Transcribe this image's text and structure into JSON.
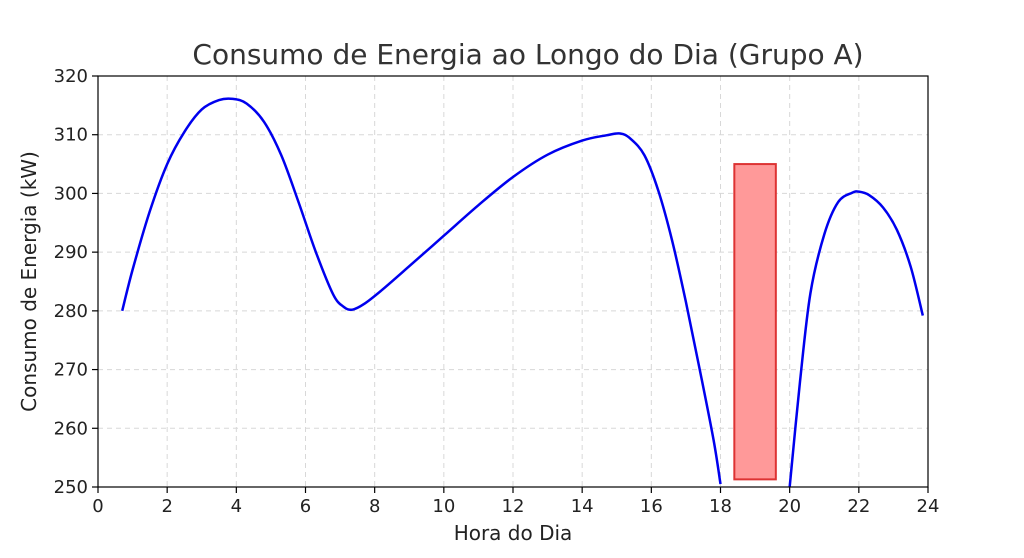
{
  "chart_data": {
    "type": "line",
    "title": "Consumo de Energia ao Longo do Dia (Grupo A)",
    "xlabel": "Hora do Dia",
    "ylabel": "Consumo de Energia (kW)",
    "xlim": [
      0,
      24
    ],
    "ylim": [
      250,
      320
    ],
    "xticks": [
      0,
      2,
      4,
      6,
      8,
      10,
      12,
      14,
      16,
      18,
      20,
      22,
      24
    ],
    "yticks": [
      250,
      260,
      270,
      280,
      290,
      300,
      310,
      320
    ],
    "grid": true,
    "series_color": "#0000ee",
    "series": [
      {
        "x": [
          0.7,
          1.0,
          1.5,
          2.0,
          2.5,
          3.0,
          3.5,
          3.9,
          4.3,
          4.8,
          5.3,
          5.8,
          6.3,
          6.8,
          7.1,
          7.35,
          7.7,
          8.2,
          9.0,
          10.0,
          11.0,
          12.0,
          13.0,
          14.0,
          14.7,
          15.1,
          15.4,
          15.8,
          16.2,
          16.6,
          17.0,
          17.4,
          17.8,
          18.0
        ],
        "y": [
          280.0,
          287.0,
          297.0,
          305.0,
          310.5,
          314.3,
          315.9,
          316.1,
          315.3,
          312.2,
          306.5,
          298.5,
          290.0,
          282.8,
          280.7,
          280.2,
          281.2,
          283.5,
          287.6,
          292.8,
          298.0,
          302.8,
          306.6,
          309.0,
          309.9,
          310.2,
          309.3,
          306.5,
          300.5,
          292.0,
          281.5,
          270.0,
          258.0,
          250.5
        ]
      },
      {
        "x": [
          20.0,
          20.3,
          20.6,
          21.0,
          21.4,
          21.8,
          22.0,
          22.3,
          22.7,
          23.1,
          23.5,
          23.85
        ],
        "y": [
          250.0,
          268.0,
          283.0,
          293.0,
          298.5,
          300.1,
          300.3,
          299.7,
          297.6,
          293.8,
          287.5,
          279.2
        ]
      }
    ],
    "shapes": [
      {
        "type": "rectangle",
        "x_range": [
          18.4,
          19.6
        ],
        "y_range": [
          251.3,
          305.0
        ],
        "fill": "#ff9999",
        "edge": "#dd3333"
      }
    ]
  }
}
